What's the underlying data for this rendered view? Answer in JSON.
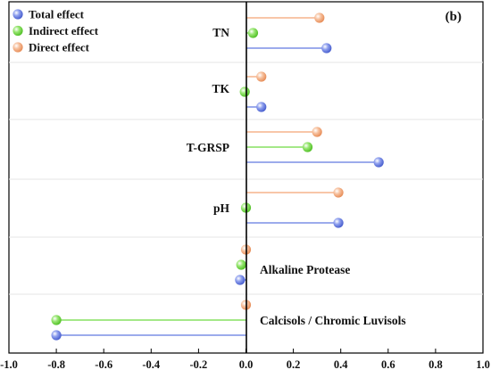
{
  "chart_data": {
    "type": "lollipop",
    "panel_label": "(b)",
    "xlim": [
      -1.0,
      1.0
    ],
    "xticks": [
      "-1.0",
      "-0.8",
      "-0.6",
      "-0.4",
      "-0.2",
      "0.0",
      "0.2",
      "0.4",
      "0.6",
      "0.8",
      "1.0"
    ],
    "legend": {
      "placement": "top-left"
    },
    "categories": [
      "TN",
      "TK",
      "T-GRSP",
      "pH",
      "Alkaline Protease",
      "Calcisols / Chromic Luvisols"
    ],
    "series": [
      {
        "name": "Total effect",
        "color": "#7b8fe6",
        "values": [
          0.34,
          0.065,
          0.56,
          0.39,
          -0.025,
          -0.8
        ]
      },
      {
        "name": "Indirect effect",
        "color": "#86e060",
        "values": [
          0.03,
          -0.005,
          0.26,
          0.0,
          -0.02,
          -0.8
        ]
      },
      {
        "name": "Direct effect",
        "color": "#f5b48c",
        "values": [
          0.31,
          0.065,
          0.3,
          0.39,
          0.0,
          0.0
        ]
      }
    ]
  }
}
